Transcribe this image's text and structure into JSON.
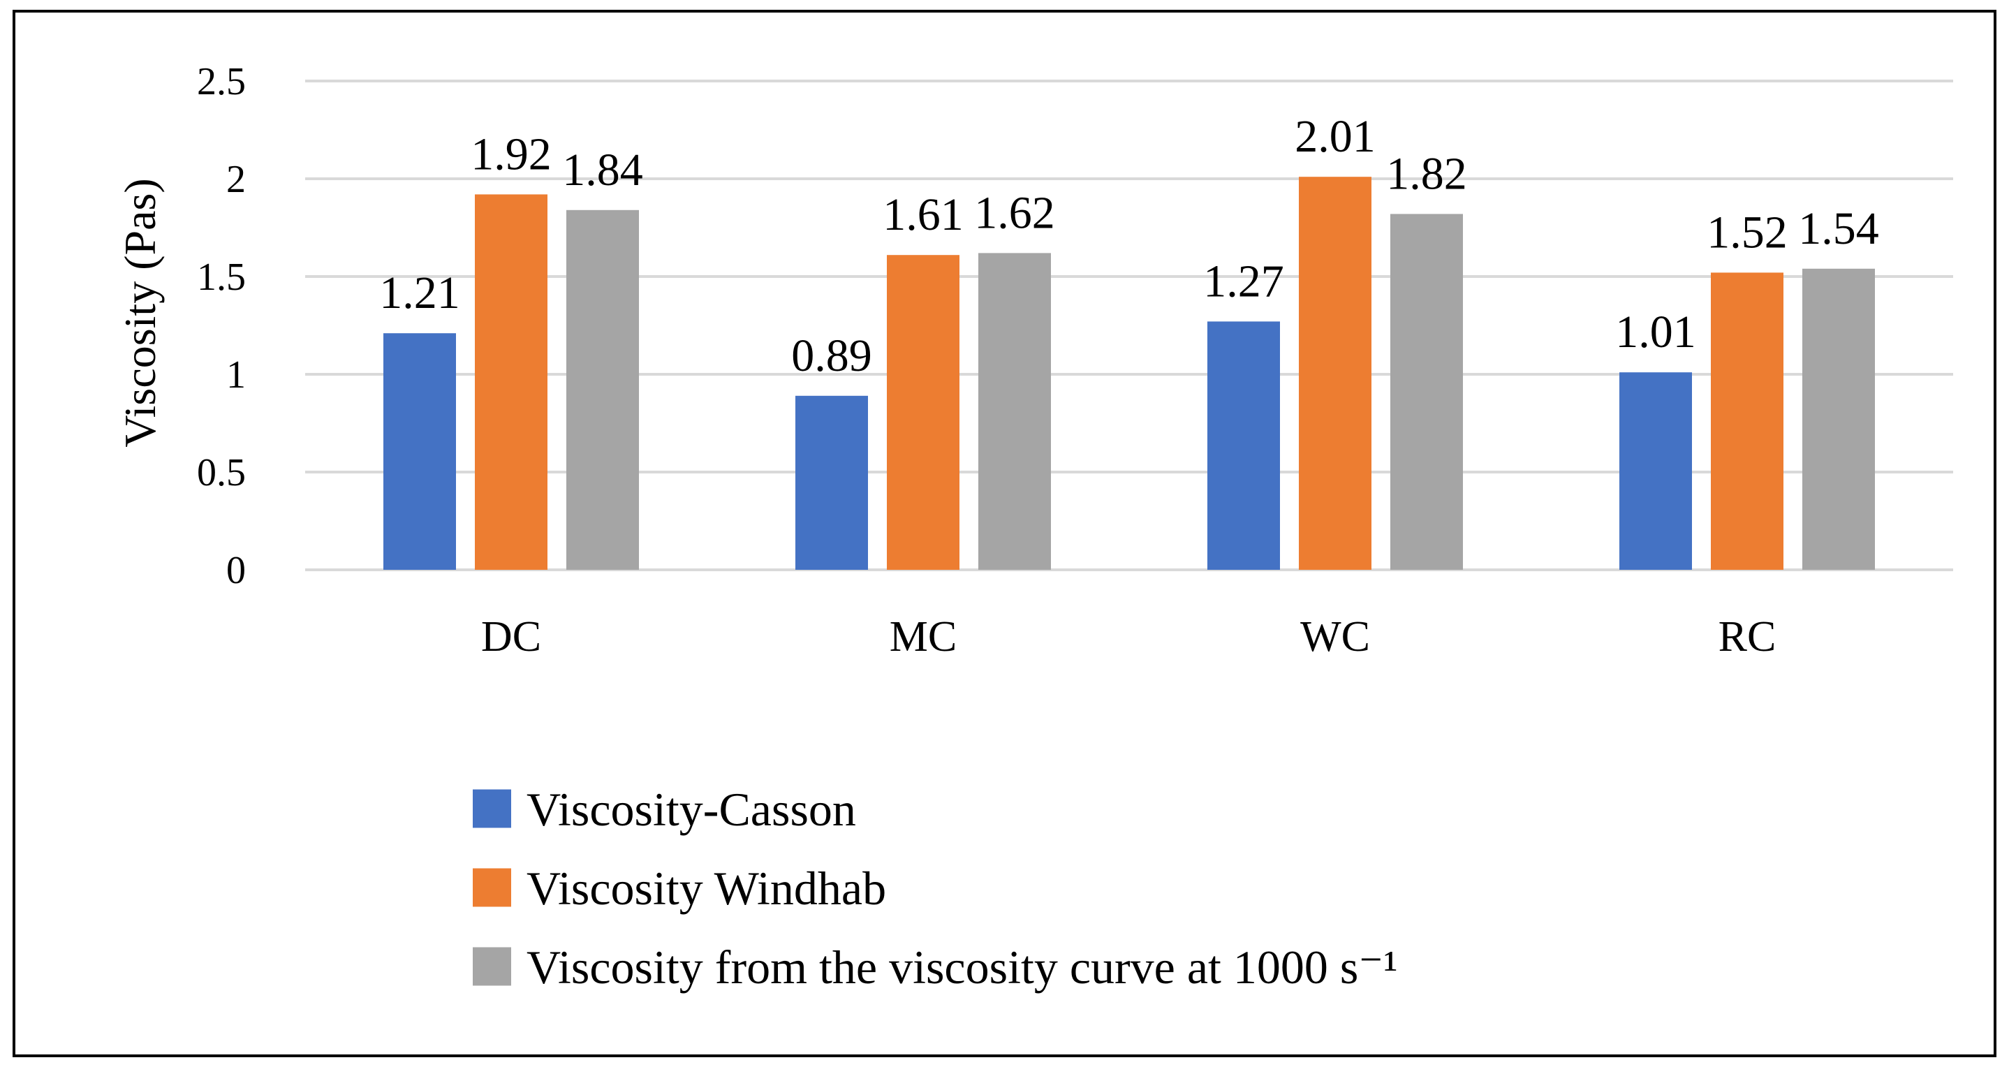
{
  "chart_data": {
    "type": "bar",
    "title": "",
    "xlabel": "",
    "ylabel": "Viscosity (Pas)",
    "ylim": [
      0,
      2.5
    ],
    "yticks": [
      "0",
      "0.5",
      "1",
      "1.5",
      "2",
      "2.5"
    ],
    "ytick_values": [
      0,
      0.5,
      1,
      1.5,
      2,
      2.5
    ],
    "grid": true,
    "legend_position": "bottom",
    "categories": [
      "DC",
      "MC",
      "WC",
      "RC"
    ],
    "series": [
      {
        "name": "Viscosity-Casson",
        "color": "#4472C4",
        "values": [
          1.21,
          0.89,
          1.27,
          1.01
        ],
        "labels": [
          "1.21",
          "0.89",
          "1.27",
          "1.01"
        ]
      },
      {
        "name": "Viscosity Windhab",
        "color": "#ED7D31",
        "values": [
          1.92,
          1.61,
          2.01,
          1.52
        ],
        "labels": [
          "1.92",
          "1.61",
          "2.01",
          "1.52"
        ]
      },
      {
        "name": "Viscosity from the viscosity curve at 1000 s⁻¹",
        "color": "#A5A5A5",
        "values": [
          1.84,
          1.62,
          1.82,
          1.54
        ],
        "labels": [
          "1.84",
          "1.62",
          "1.82",
          "1.54"
        ]
      }
    ]
  }
}
